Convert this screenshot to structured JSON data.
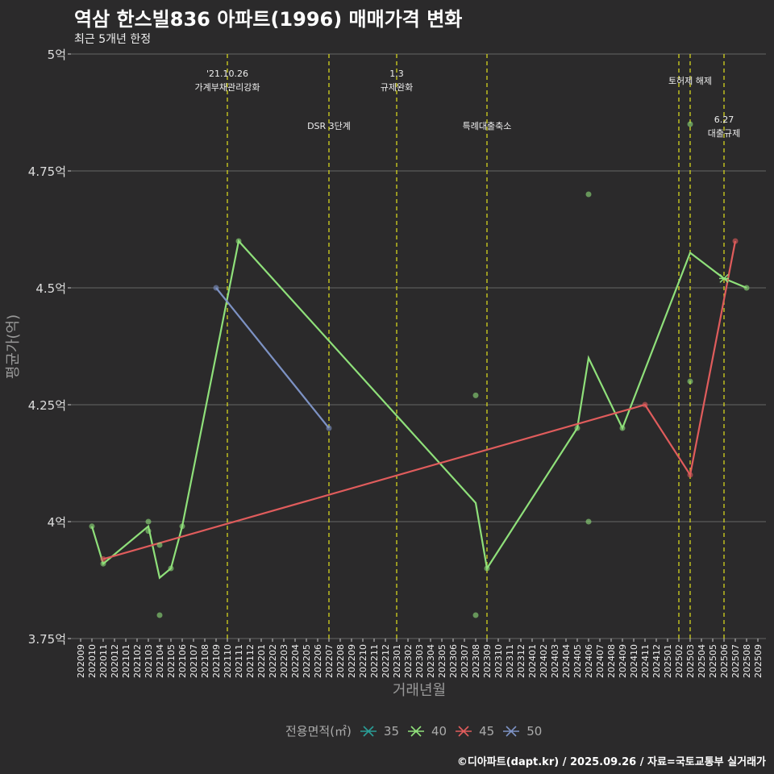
{
  "chart_data": {
    "type": "line",
    "title": "역삼 한스빌836 아파트(1996) 매매가격 변화",
    "subtitle": "최근 5개년 한정",
    "xlabel": "거래년월",
    "ylabel": "평균가(억)",
    "ylim": [
      3.75,
      5.0
    ],
    "yticks": [
      3.75,
      4.0,
      4.25,
      4.5,
      4.75,
      5.0
    ],
    "ytick_labels": [
      "3.75억",
      "4억",
      "4.25억",
      "4.5억",
      "4.75억",
      "5억"
    ],
    "x_start": "202009",
    "x_end": "202509",
    "grid": true,
    "legend": {
      "title": "전용면적(㎡)",
      "placement": "bottom",
      "entries": [
        {
          "name": "35",
          "color": "#2a9d96"
        },
        {
          "name": "40",
          "color": "#8fe07a"
        },
        {
          "name": "45",
          "color": "#e05c5c"
        },
        {
          "name": "50",
          "color": "#7d92c4"
        }
      ]
    },
    "series": [
      {
        "name": "40",
        "color": "#8fe07a",
        "points": [
          [
            "202010",
            3.99
          ],
          [
            "202011",
            3.91
          ],
          [
            "202103",
            3.99
          ],
          [
            "202104",
            3.88
          ],
          [
            "202105",
            3.9
          ],
          [
            "202106",
            3.99
          ],
          [
            "202111",
            4.6
          ],
          [
            "202308",
            4.04
          ],
          [
            "202309",
            3.9
          ],
          [
            "202405",
            4.2
          ],
          [
            "202406",
            4.35
          ],
          [
            "202409",
            4.2
          ],
          [
            "202503",
            4.575
          ],
          [
            "202506",
            4.52
          ],
          [
            "202508",
            4.5
          ]
        ]
      },
      {
        "name": "45",
        "color": "#e05c5c",
        "points": [
          [
            "202011",
            3.92
          ],
          [
            "202411",
            4.25
          ],
          [
            "202503",
            4.1
          ],
          [
            "202507",
            4.6
          ]
        ]
      },
      {
        "name": "50",
        "color": "#7d92c4",
        "points": [
          [
            "202109",
            4.5
          ],
          [
            "202207",
            4.2
          ]
        ]
      }
    ],
    "transactions": [
      {
        "series": "40",
        "x": "202010",
        "y": 3.99
      },
      {
        "series": "40",
        "x": "202011",
        "y": 3.91
      },
      {
        "series": "40",
        "x": "202103",
        "y": 4.0
      },
      {
        "series": "40",
        "x": "202103",
        "y": 3.98
      },
      {
        "series": "40",
        "x": "202104",
        "y": 3.95
      },
      {
        "series": "40",
        "x": "202104",
        "y": 3.8
      },
      {
        "series": "40",
        "x": "202105",
        "y": 3.9
      },
      {
        "series": "40",
        "x": "202106",
        "y": 3.99
      },
      {
        "series": "40",
        "x": "202111",
        "y": 4.6
      },
      {
        "series": "40",
        "x": "202308",
        "y": 4.27
      },
      {
        "series": "40",
        "x": "202308",
        "y": 3.8
      },
      {
        "series": "40",
        "x": "202309",
        "y": 3.9
      },
      {
        "series": "40",
        "x": "202405",
        "y": 4.2
      },
      {
        "series": "40",
        "x": "202406",
        "y": 4.7
      },
      {
        "series": "40",
        "x": "202406",
        "y": 4.0
      },
      {
        "series": "40",
        "x": "202409",
        "y": 4.2
      },
      {
        "series": "40",
        "x": "202503",
        "y": 4.85
      },
      {
        "series": "40",
        "x": "202503",
        "y": 4.3
      },
      {
        "series": "40",
        "x": "202508",
        "y": 4.5
      },
      {
        "series": "45",
        "x": "202011",
        "y": 3.92
      },
      {
        "series": "45",
        "x": "202411",
        "y": 4.25
      },
      {
        "series": "45",
        "x": "202503",
        "y": 4.1
      },
      {
        "series": "45",
        "x": "202507",
        "y": 4.6
      },
      {
        "series": "50",
        "x": "202109",
        "y": 4.5
      },
      {
        "series": "50",
        "x": "202207",
        "y": 4.2
      }
    ],
    "annotations": [
      {
        "x": "202110",
        "lines": [
          "'21.10.26",
          "가계부채관리강화"
        ],
        "level": "top"
      },
      {
        "x": "202207",
        "lines": [
          "DSR 3단계"
        ],
        "level": "low"
      },
      {
        "x": "202301",
        "lines": [
          "1.3",
          "규제완화"
        ],
        "level": "top"
      },
      {
        "x": "202309",
        "lines": [
          "특례대출축소"
        ],
        "level": "low"
      },
      {
        "x": "202502",
        "lines": [],
        "level": "top"
      },
      {
        "x": "202503",
        "lines": [
          "토허제 해제"
        ],
        "level": "mid"
      },
      {
        "x": "202506",
        "lines": [
          "6.27",
          "대출규제"
        ],
        "level": "mid2"
      }
    ],
    "caption": "©디아파트(dapt.kr) / 2025.09.26 / 자료=국토교통부 실거래가"
  }
}
